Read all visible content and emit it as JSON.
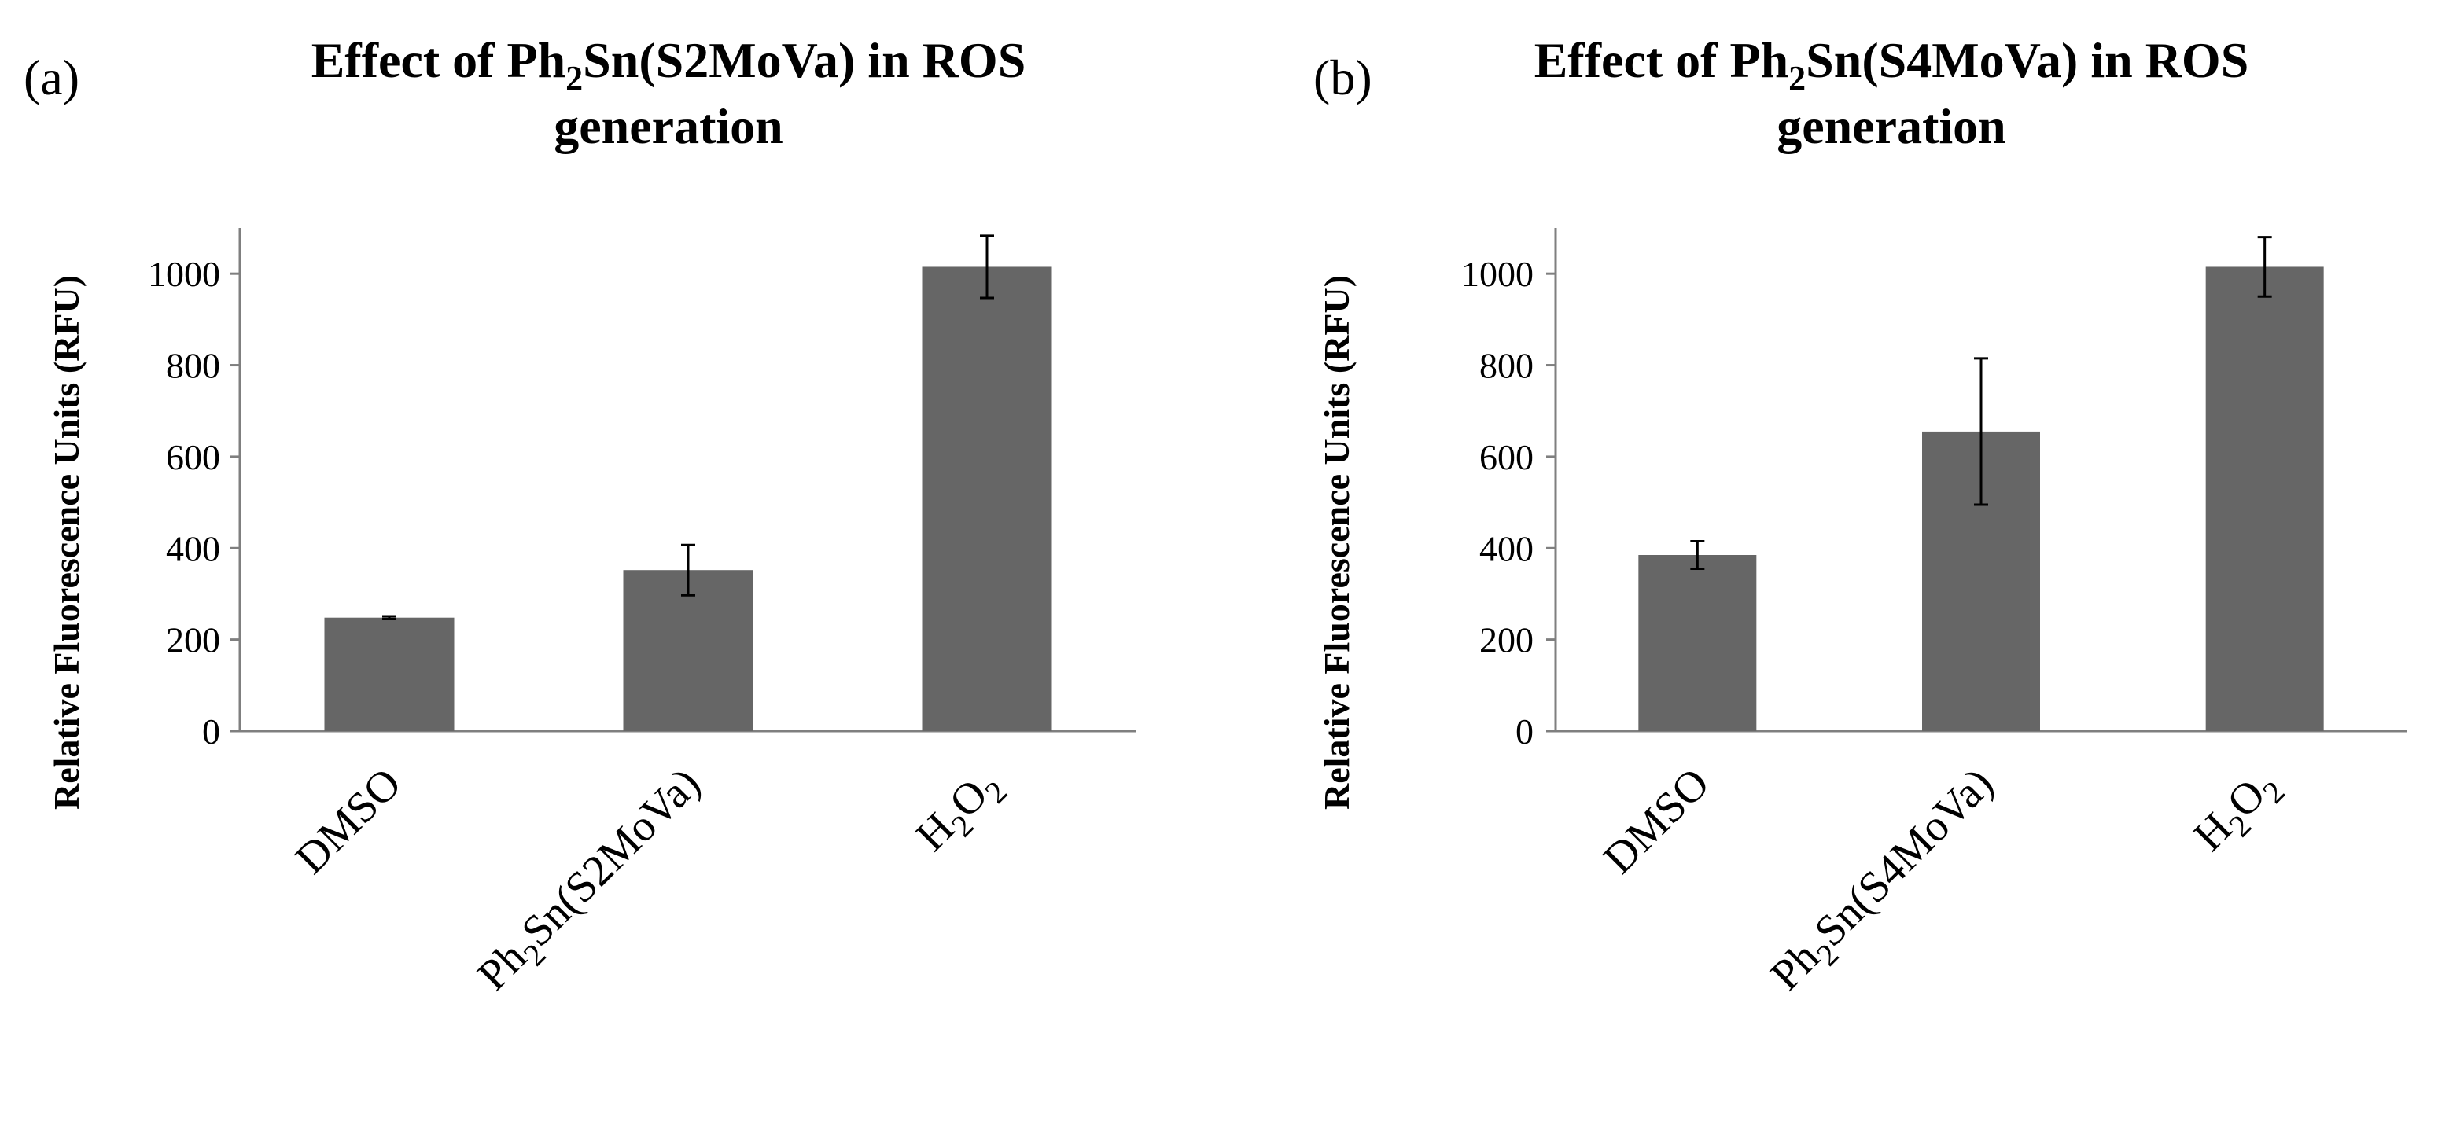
{
  "figure": {
    "bar_color": "#666666",
    "axis_color": "#7f7f7f",
    "text_color": "#000000"
  },
  "chart_data": [
    {
      "panel_label": "(a)",
      "type": "bar",
      "title_parts": [
        {
          "line": 1,
          "text": "Effect of Ph",
          "sub": false
        },
        {
          "line": 1,
          "text": "2",
          "sub": true
        },
        {
          "line": 1,
          "text": "Sn(S2MoVa) in ROS",
          "sub": false
        },
        {
          "line": 2,
          "text": "generation",
          "sub": false
        }
      ],
      "ylabel": "Relative Fluorescence Units (RFU)",
      "xlabel": "",
      "ylim": [
        0,
        1100
      ],
      "yticks": [
        0,
        200,
        400,
        600,
        800,
        1000
      ],
      "grid": false,
      "categories": [
        [
          {
            "text": "DMSO",
            "sub": false
          }
        ],
        [
          {
            "text": "Ph",
            "sub": false
          },
          {
            "text": "2",
            "sub": true
          },
          {
            "text": "Sn(S2MoVa)",
            "sub": false
          }
        ],
        [
          {
            "text": "H",
            "sub": false
          },
          {
            "text": "2",
            "sub": true
          },
          {
            "text": "O",
            "sub": false
          },
          {
            "text": "2",
            "sub": true
          }
        ]
      ],
      "values": [
        248,
        352,
        1015
      ],
      "errors": [
        3,
        55,
        68
      ]
    },
    {
      "panel_label": "(b)",
      "type": "bar",
      "title_parts": [
        {
          "line": 1,
          "text": "Effect of Ph",
          "sub": false
        },
        {
          "line": 1,
          "text": "2",
          "sub": true
        },
        {
          "line": 1,
          "text": "Sn(S4MoVa) in ROS",
          "sub": false
        },
        {
          "line": 2,
          "text": "generation",
          "sub": false
        }
      ],
      "ylabel": "Relative Fluorescence Units (RFU)",
      "xlabel": "",
      "ylim": [
        0,
        1100
      ],
      "yticks": [
        0,
        200,
        400,
        600,
        800,
        1000
      ],
      "grid": false,
      "categories": [
        [
          {
            "text": "DMSO",
            "sub": false
          }
        ],
        [
          {
            "text": "Ph",
            "sub": false
          },
          {
            "text": "2",
            "sub": true
          },
          {
            "text": "Sn(S4MoVa)",
            "sub": false
          }
        ],
        [
          {
            "text": "H",
            "sub": false
          },
          {
            "text": "2",
            "sub": true
          },
          {
            "text": "O",
            "sub": false
          },
          {
            "text": "2",
            "sub": true
          }
        ]
      ],
      "values": [
        385,
        655,
        1015
      ],
      "errors": [
        30,
        160,
        65
      ]
    }
  ]
}
